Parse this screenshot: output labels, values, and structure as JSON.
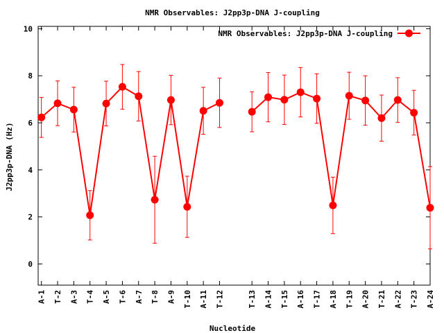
{
  "chart_data": {
    "type": "line",
    "title": "NMR Observables: J2pp3p-DNA J-coupling",
    "xlabel": "Nucleotide",
    "ylabel": "J2pp3p-DNA (Hz)",
    "ylim": [
      -0.9,
      10.1
    ],
    "yticks": [
      0,
      2,
      4,
      6,
      8,
      10
    ],
    "xlim": [
      0.8,
      25.0
    ],
    "grid": false,
    "legend": "top-right",
    "series": [
      {
        "name": "NMR Observables: J2pp3p-DNA J-coupling",
        "color": "#ff0000",
        "segments": [
          {
            "x": [
              1,
              2,
              3,
              4,
              5,
              6,
              7,
              8,
              9,
              10,
              11,
              12
            ],
            "labels": [
              "A-1",
              "T-2",
              "A-3",
              "T-4",
              "A-5",
              "T-6",
              "A-7",
              "T-8",
              "A-9",
              "T-10",
              "A-11",
              "T-12"
            ],
            "values": [
              6.23,
              6.83,
              6.56,
              2.07,
              6.82,
              7.53,
              7.13,
              2.73,
              6.97,
              2.43,
              6.51,
              6.85
            ],
            "errors": [
              0.85,
              0.95,
              0.95,
              1.05,
              0.95,
              0.95,
              1.05,
              1.85,
              1.05,
              1.3,
              1.0,
              1.05
            ]
          },
          {
            "x": [
              14,
              15,
              16,
              17,
              18,
              19,
              20,
              21,
              22,
              23,
              24,
              25
            ],
            "labels": [
              "T-13",
              "A-14",
              "T-15",
              "A-16",
              "T-17",
              "A-18",
              "T-19",
              "A-20",
              "T-21",
              "A-22",
              "T-23",
              "A-24"
            ],
            "values": [
              6.47,
              7.09,
              6.98,
              7.3,
              7.03,
              2.49,
              7.15,
              6.95,
              6.2,
              6.97,
              6.43,
              2.39
            ],
            "errors": [
              0.85,
              1.05,
              1.05,
              1.05,
              1.05,
              1.2,
              1.0,
              1.05,
              0.98,
              0.95,
              0.95,
              1.75
            ]
          }
        ]
      }
    ]
  }
}
